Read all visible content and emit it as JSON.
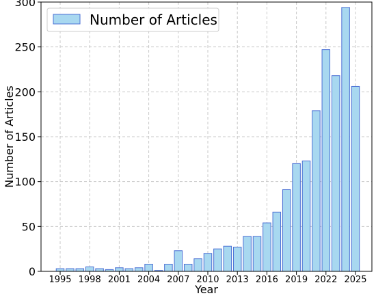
{
  "chart_data": {
    "type": "bar",
    "xlabel": "Year",
    "ylabel": "Number of Articles",
    "ylim": [
      0,
      300
    ],
    "yticks": [
      0,
      50,
      100,
      150,
      200,
      250,
      300
    ],
    "xticks": [
      "1995",
      "1998",
      "2001",
      "2004",
      "2007",
      "2010",
      "2013",
      "2016",
      "2019",
      "2022",
      "2025"
    ],
    "grid": true,
    "legend_position": "top-left",
    "categories": [
      "1995",
      "1996",
      "1997",
      "1998",
      "1999",
      "2000",
      "2001",
      "2002",
      "2003",
      "2004",
      "2005",
      "2006",
      "2007",
      "2008",
      "2009",
      "2010",
      "2011",
      "2012",
      "2013",
      "2014",
      "2015",
      "2016",
      "2017",
      "2018",
      "2019",
      "2020",
      "2021",
      "2022",
      "2023",
      "2024",
      "2025"
    ],
    "series": [
      {
        "name": "Number of Articles",
        "values": [
          3,
          3,
          3,
          5,
          3,
          2,
          4,
          3,
          4,
          8,
          1,
          8,
          23,
          8,
          14,
          20,
          25,
          28,
          27,
          39,
          39,
          54,
          66,
          91,
          120,
          123,
          179,
          247,
          218,
          294,
          206
        ],
        "fill": "#a8d8f0",
        "stroke": "#4a6fd4"
      }
    ]
  }
}
